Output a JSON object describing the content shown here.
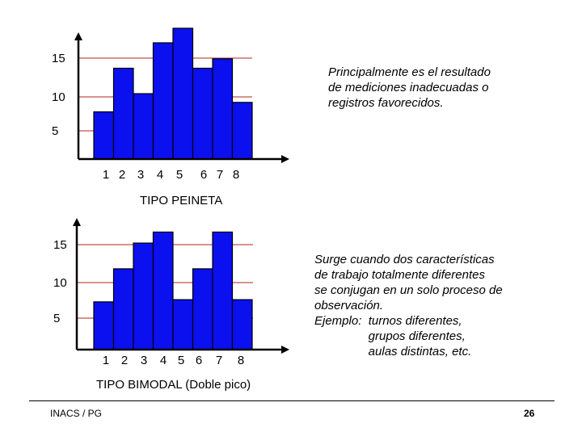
{
  "chart_data": [
    {
      "type": "bar",
      "categories": [
        "1",
        "2",
        "3",
        "4",
        "5",
        "6",
        "7",
        "8"
      ],
      "values": [
        6.5,
        12.5,
        9,
        16,
        18,
        12.5,
        13.8,
        7.8
      ],
      "yticks": [
        "5",
        "10",
        "15"
      ],
      "ylim": [
        0,
        19
      ],
      "title": "TIPO PEINETA",
      "bar_color": "#0b10ef",
      "grid_color": "#c0504d",
      "grid": true
    },
    {
      "type": "bar",
      "categories": [
        "1",
        "2",
        "3",
        "4",
        "5",
        "6",
        "7",
        "8"
      ],
      "values": [
        6.5,
        11,
        14.5,
        16,
        6.8,
        11,
        16,
        6.8
      ],
      "yticks": [
        "5",
        "10",
        "15"
      ],
      "ylim": [
        0,
        19
      ],
      "title": "TIPO BIMODAL (Doble pico)",
      "bar_color": "#0b10ef",
      "grid_color": "#c0504d",
      "grid": true
    }
  ],
  "notes": {
    "top": "Principalmente es el resultado\nde mediciones inadecuadas o\nregistros favorecidos.",
    "bottom": "Surge cuando dos características\nde trabajo totalmente diferentes\nse conjugan en un solo proceso de\nobservación.\nEjemplo:  turnos diferentes,\n                grupos diferentes,\n                aulas distintas, etc."
  },
  "footer": {
    "left": "INACS / PG",
    "page": "26"
  }
}
